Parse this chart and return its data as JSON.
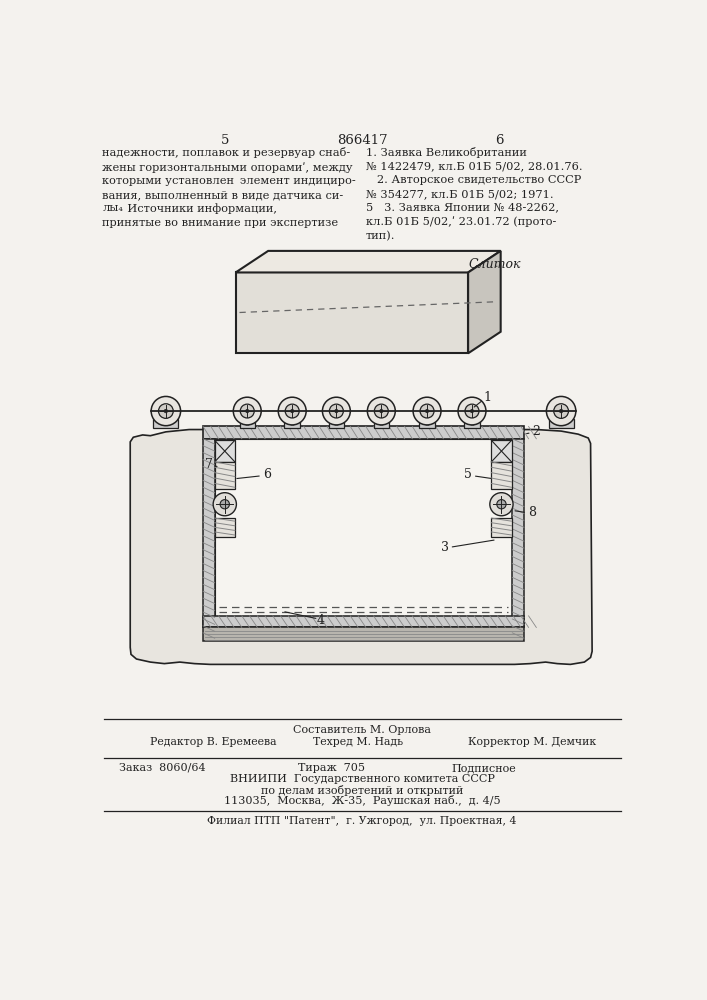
{
  "bg_color": "#f4f2ee",
  "page_color": "#f4f2ee",
  "title_num": "866417",
  "page_left": "5",
  "page_right": "6",
  "label_sliток": "Слиток",
  "footer_line1": "Составитель М. Орлова",
  "footer_line2": "Редактор В. Еремеева",
  "footer_line3": "Техред М. Надь",
  "footer_line4": "Корректор М. Демчик",
  "footer_line5": "Заказ  8060/64",
  "footer_line6": "Тираж  705",
  "footer_line7": "Подписное",
  "footer_line8": "ВНИИПИ  Государственного комитета СССР",
  "footer_line9": "по делам изобретений и открытий",
  "footer_line10": "113035,  Москва,  Ж-35,  Раушская наб.,  д. 4/5",
  "footer_line11": "Филиал ПТП \"Патент\",  г. Ужгород,  ул. Проектная, 4",
  "draw_bg": "#f8f6f2",
  "hatch_color": "#555555",
  "line_color": "#222222"
}
